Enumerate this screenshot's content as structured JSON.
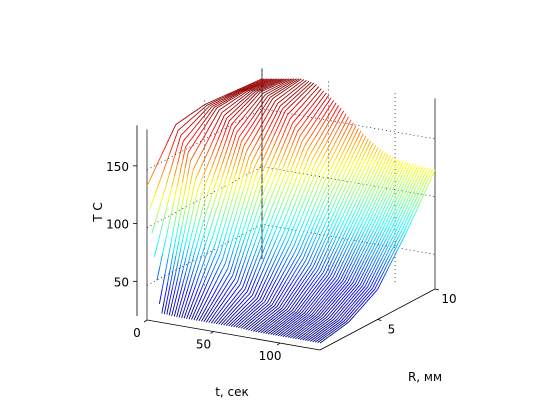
{
  "chart_data": {
    "type": "surface",
    "title": "",
    "xlabel": "t, сек",
    "ylabel": "R, мм",
    "zlabel": "T C",
    "x_ticks": [
      0,
      50,
      100
    ],
    "y_ticks": [
      5,
      10
    ],
    "z_ticks": [
      50,
      100,
      150
    ],
    "xlim": [
      0,
      130
    ],
    "ylim": [
      0,
      10
    ],
    "zlim": [
      20,
      185
    ],
    "grid": true,
    "box": true,
    "colormap": "jet",
    "surface": {
      "description": "temperature T(t, R)",
      "t_samples": [
        0,
        10,
        20,
        30,
        40,
        50,
        60,
        70,
        80,
        90,
        100,
        110,
        120,
        130
      ],
      "R_samples": [
        0,
        2.5,
        5,
        7.5,
        10
      ],
      "T_values": [
        [
          136,
          176,
          180,
          178,
          176
        ],
        [
          28,
          152,
          179,
          181,
          178
        ],
        [
          27,
          110,
          168,
          182,
          180
        ],
        [
          27,
          78,
          150,
          178,
          182
        ],
        [
          27,
          57,
          125,
          168,
          180
        ],
        [
          27,
          45,
          100,
          150,
          172
        ],
        [
          27,
          38,
          80,
          130,
          162
        ],
        [
          27,
          35,
          66,
          112,
          150
        ],
        [
          26,
          33,
          57,
          100,
          140
        ],
        [
          26,
          32,
          52,
          92,
          132
        ],
        [
          26,
          32,
          49,
          87,
          127
        ],
        [
          26,
          32,
          48,
          84,
          125
        ],
        [
          26,
          31,
          47,
          83,
          124
        ],
        [
          26,
          31,
          46,
          82,
          123
        ]
      ]
    }
  }
}
